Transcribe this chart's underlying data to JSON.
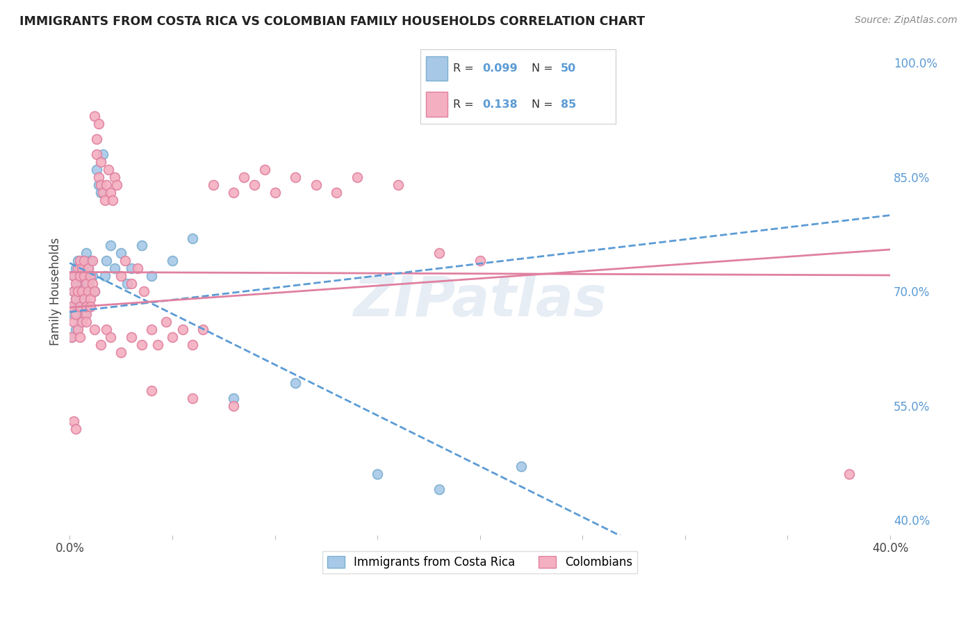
{
  "title": "IMMIGRANTS FROM COSTA RICA VS COLOMBIAN FAMILY HOUSEHOLDS CORRELATION CHART",
  "source": "Source: ZipAtlas.com",
  "ylabel": "Family Households",
  "xlim": [
    0.0,
    0.4
  ],
  "ylim": [
    0.38,
    1.02
  ],
  "xticks": [
    0.0,
    0.05,
    0.1,
    0.15,
    0.2,
    0.25,
    0.3,
    0.35,
    0.4
  ],
  "yticks_right": [
    1.0,
    0.85,
    0.7,
    0.55,
    0.4
  ],
  "ytick_labels_right": [
    "100.0%",
    "85.0%",
    "70.0%",
    "55.0%",
    "40.0%"
  ],
  "color_cr": "#a8c8e8",
  "color_col": "#f4afc0",
  "color_cr_border": "#7aafd0",
  "color_col_border": "#e080a0",
  "color_cr_line": "#5b9bd5",
  "color_col_line": "#e080a0",
  "background_color": "#ffffff",
  "grid_color": "#e8e8e8",
  "watermark": "ZIPatlas",
  "costa_rica_x": [
    0.001,
    0.001,
    0.002,
    0.002,
    0.002,
    0.003,
    0.003,
    0.003,
    0.004,
    0.004,
    0.004,
    0.005,
    0.005,
    0.005,
    0.005,
    0.006,
    0.006,
    0.006,
    0.007,
    0.007,
    0.007,
    0.008,
    0.008,
    0.008,
    0.009,
    0.009,
    0.01,
    0.01,
    0.011,
    0.012,
    0.013,
    0.014,
    0.015,
    0.016,
    0.017,
    0.018,
    0.02,
    0.022,
    0.025,
    0.028,
    0.03,
    0.035,
    0.04,
    0.05,
    0.06,
    0.08,
    0.11,
    0.15,
    0.18,
    0.22
  ],
  "costa_rica_y": [
    0.64,
    0.68,
    0.7,
    0.72,
    0.67,
    0.65,
    0.69,
    0.73,
    0.71,
    0.68,
    0.74,
    0.66,
    0.7,
    0.73,
    0.68,
    0.72,
    0.69,
    0.71,
    0.7,
    0.74,
    0.67,
    0.72,
    0.75,
    0.68,
    0.73,
    0.71,
    0.7,
    0.74,
    0.72,
    0.7,
    0.86,
    0.84,
    0.83,
    0.88,
    0.72,
    0.74,
    0.76,
    0.73,
    0.75,
    0.71,
    0.73,
    0.76,
    0.72,
    0.74,
    0.77,
    0.56,
    0.58,
    0.46,
    0.44,
    0.47
  ],
  "colombians_x": [
    0.001,
    0.001,
    0.002,
    0.002,
    0.002,
    0.003,
    0.003,
    0.003,
    0.004,
    0.004,
    0.004,
    0.005,
    0.005,
    0.005,
    0.006,
    0.006,
    0.006,
    0.007,
    0.007,
    0.007,
    0.008,
    0.008,
    0.008,
    0.009,
    0.009,
    0.01,
    0.01,
    0.011,
    0.011,
    0.012,
    0.012,
    0.013,
    0.013,
    0.014,
    0.014,
    0.015,
    0.015,
    0.016,
    0.017,
    0.018,
    0.019,
    0.02,
    0.021,
    0.022,
    0.023,
    0.025,
    0.027,
    0.03,
    0.033,
    0.036,
    0.04,
    0.043,
    0.047,
    0.05,
    0.055,
    0.06,
    0.065,
    0.07,
    0.08,
    0.085,
    0.09,
    0.095,
    0.1,
    0.11,
    0.12,
    0.13,
    0.14,
    0.16,
    0.18,
    0.2,
    0.005,
    0.008,
    0.01,
    0.012,
    0.015,
    0.018,
    0.02,
    0.025,
    0.03,
    0.035,
    0.04,
    0.06,
    0.08,
    0.38,
    0.002,
    0.003
  ],
  "colombians_y": [
    0.64,
    0.68,
    0.66,
    0.7,
    0.72,
    0.67,
    0.71,
    0.69,
    0.65,
    0.73,
    0.7,
    0.68,
    0.72,
    0.74,
    0.66,
    0.7,
    0.73,
    0.69,
    0.72,
    0.74,
    0.67,
    0.71,
    0.68,
    0.7,
    0.73,
    0.69,
    0.72,
    0.71,
    0.74,
    0.7,
    0.93,
    0.9,
    0.88,
    0.92,
    0.85,
    0.87,
    0.84,
    0.83,
    0.82,
    0.84,
    0.86,
    0.83,
    0.82,
    0.85,
    0.84,
    0.72,
    0.74,
    0.71,
    0.73,
    0.7,
    0.65,
    0.63,
    0.66,
    0.64,
    0.65,
    0.63,
    0.65,
    0.84,
    0.83,
    0.85,
    0.84,
    0.86,
    0.83,
    0.85,
    0.84,
    0.83,
    0.85,
    0.84,
    0.75,
    0.74,
    0.64,
    0.66,
    0.68,
    0.65,
    0.63,
    0.65,
    0.64,
    0.62,
    0.64,
    0.63,
    0.57,
    0.56,
    0.55,
    0.46,
    0.53,
    0.52
  ]
}
